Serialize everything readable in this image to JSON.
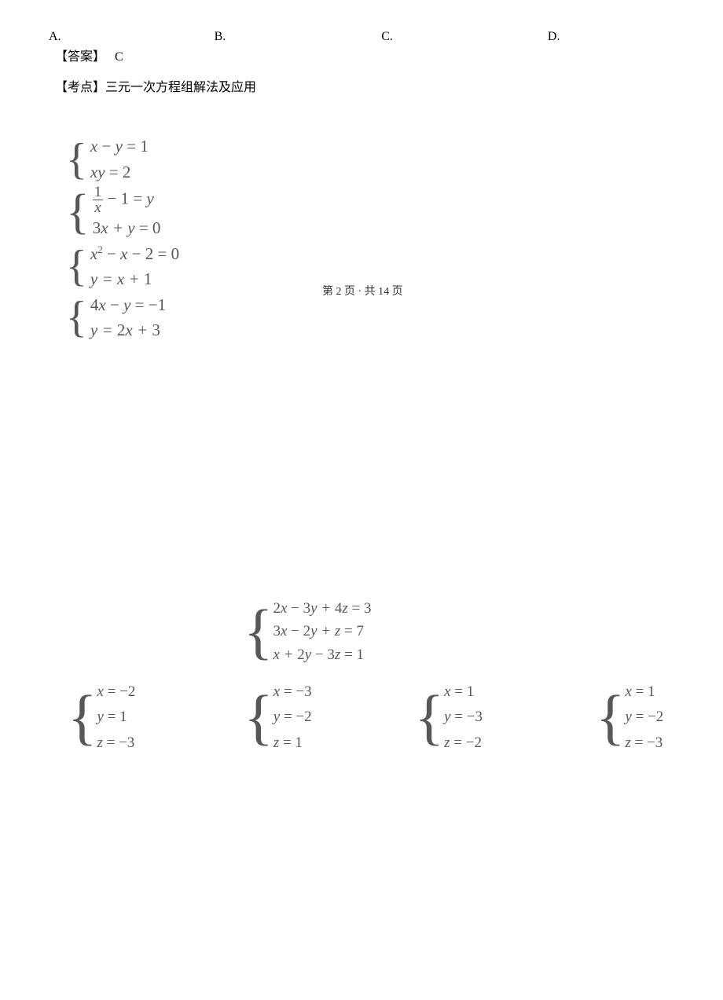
{
  "top_options": {
    "a": "A.",
    "b": "B.",
    "c": "C.",
    "d": "D."
  },
  "answer_label": "【答案】",
  "answer_value": "C",
  "exam_point_label": "【考点】",
  "exam_point_value": "三元一次方程组解法及应用",
  "eq_groups": [
    {
      "lines": [
        "x − y = 1",
        "xy = 2"
      ]
    },
    {
      "lines": [
        "FRAC(1,x) − 1 = y",
        "3x + y = 0"
      ]
    },
    {
      "lines": [
        "x² − x − 2 = 0",
        "y = x + 1"
      ]
    },
    {
      "lines": [
        "4x − y = −1",
        "y = 2x + 3"
      ]
    }
  ],
  "page_indicator": "第  2  页 ·  共  14  页",
  "main_system": [
    "2x − 3y + 4z = 3",
    "3x − 2y + z = 7",
    "x + 2y − 3z = 1"
  ],
  "answer_choices": {
    "a": [
      "x = −2",
      "y = 1",
      "z = −3"
    ],
    "b": [
      "x = −3",
      "y = −2",
      "z = 1"
    ],
    "c": [
      "x = 1",
      "y = −3",
      "z = −2"
    ],
    "d": [
      "x = 1",
      "y = −2",
      "z = −3"
    ]
  },
  "colors": {
    "text": "#000000",
    "math": "#575757",
    "background": "#ffffff"
  },
  "fonts": {
    "body": "SimSun",
    "math": "Times New Roman"
  }
}
